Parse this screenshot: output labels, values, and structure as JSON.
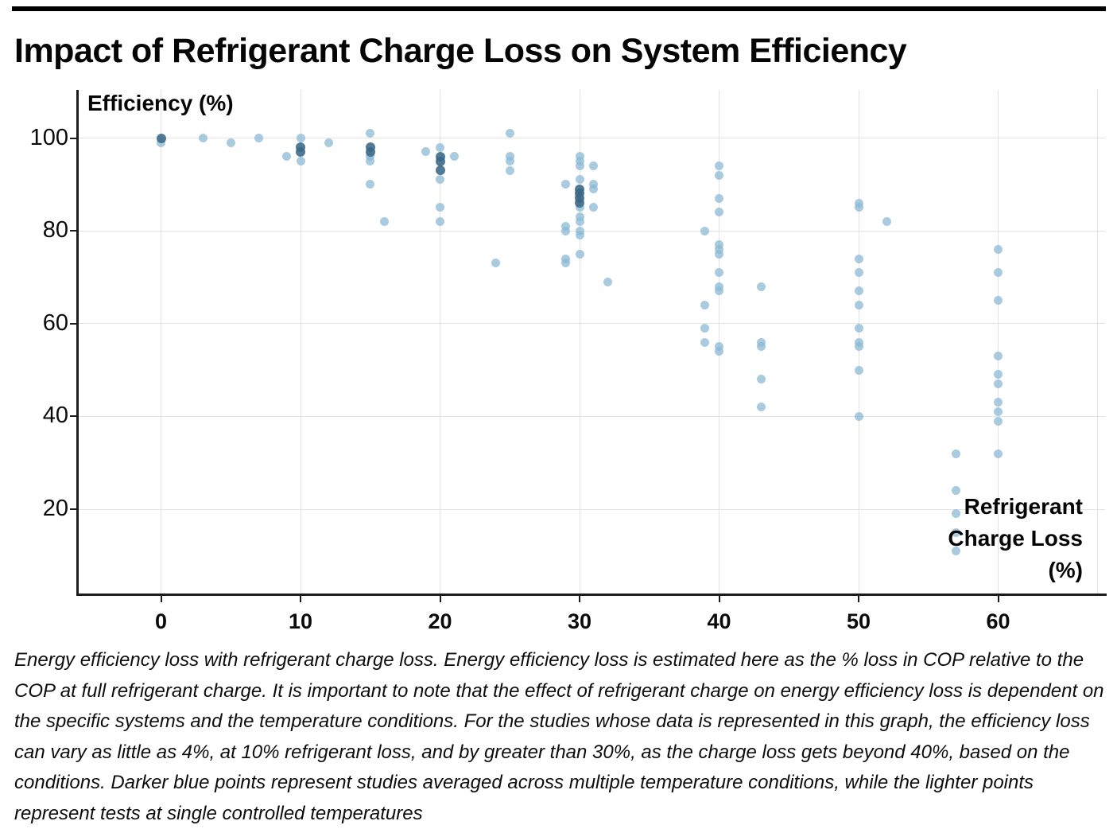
{
  "page": {
    "title": "Impact of Refrigerant Charge Loss on System Efficiency",
    "caption": "Energy efficiency loss with refrigerant charge loss. Energy efficiency loss is estimated here as the % loss in COP relative to the COP at full refrigerant charge. It is important to note that the effect of refrigerant charge on energy efficiency loss is dependent on the specific systems and the temperature conditions. For the studies whose data is represented in this graph, the efficiency loss can vary as little as 4%, at 10% refrigerant loss, and by greater than 30%, as the charge loss gets beyond 40%, based on the conditions. Darker blue points represent studies averaged across multiple temperature conditions, while the lighter points represent tests at single controlled temperatures"
  },
  "chart_data": {
    "type": "scatter",
    "title": "Impact of Refrigerant Charge Loss on System Efficiency",
    "xlabel": "Refrigerant Charge Loss (%)",
    "xlabel_display": "Refrigerant\nCharge Loss\n(%)",
    "ylabel": "Efficiency (%)",
    "xlim": [
      -6,
      67
    ],
    "ylim": [
      2,
      108
    ],
    "xticks": [
      0,
      10,
      20,
      30,
      40,
      50,
      60
    ],
    "yticks": [
      100,
      80,
      60,
      40,
      20
    ],
    "grid": true,
    "legend_position": "none",
    "colors": {
      "light_point": "#a8cbe0",
      "dark_point": "#4a7895",
      "gridline": "#e3e3e3",
      "axis": "#1c1c1c"
    },
    "series": [
      {
        "name": "Studies averaged across multiple temperature conditions",
        "style": "dark",
        "points": [
          [
            0,
            100
          ],
          [
            10,
            98
          ],
          [
            10,
            97
          ],
          [
            15,
            98
          ],
          [
            15,
            97
          ],
          [
            20,
            96
          ],
          [
            20,
            95
          ],
          [
            20,
            93
          ],
          [
            30,
            89
          ],
          [
            30,
            88
          ],
          [
            30,
            87
          ],
          [
            30,
            86
          ]
        ]
      },
      {
        "name": "Tests at single controlled temperatures",
        "style": "light",
        "points": [
          [
            0,
            99
          ],
          [
            3,
            100
          ],
          [
            5,
            99
          ],
          [
            7,
            100
          ],
          [
            9,
            96
          ],
          [
            10,
            100
          ],
          [
            10,
            95
          ],
          [
            12,
            99
          ],
          [
            15,
            101
          ],
          [
            15,
            96
          ],
          [
            15,
            95
          ],
          [
            15,
            90
          ],
          [
            16,
            82
          ],
          [
            19,
            97
          ],
          [
            20,
            98
          ],
          [
            20,
            91
          ],
          [
            20,
            85
          ],
          [
            20,
            82
          ],
          [
            21,
            96
          ],
          [
            24,
            73
          ],
          [
            25,
            101
          ],
          [
            25,
            96
          ],
          [
            25,
            95
          ],
          [
            25,
            93
          ],
          [
            29,
            90
          ],
          [
            29,
            81
          ],
          [
            29,
            80
          ],
          [
            29,
            74
          ],
          [
            29,
            73
          ],
          [
            30,
            96
          ],
          [
            30,
            95
          ],
          [
            30,
            94
          ],
          [
            30,
            91
          ],
          [
            30,
            85
          ],
          [
            30,
            83
          ],
          [
            30,
            82
          ],
          [
            30,
            80
          ],
          [
            30,
            79
          ],
          [
            30,
            75
          ],
          [
            31,
            94
          ],
          [
            31,
            90
          ],
          [
            31,
            89
          ],
          [
            31,
            85
          ],
          [
            32,
            69
          ],
          [
            39,
            80
          ],
          [
            39,
            64
          ],
          [
            39,
            59
          ],
          [
            39,
            56
          ],
          [
            40,
            94
          ],
          [
            40,
            92
          ],
          [
            40,
            87
          ],
          [
            40,
            84
          ],
          [
            40,
            77
          ],
          [
            40,
            76
          ],
          [
            40,
            75
          ],
          [
            40,
            71
          ],
          [
            40,
            68
          ],
          [
            40,
            67
          ],
          [
            40,
            55
          ],
          [
            40,
            54
          ],
          [
            43,
            68
          ],
          [
            43,
            56
          ],
          [
            43,
            55
          ],
          [
            43,
            48
          ],
          [
            43,
            42
          ],
          [
            50,
            86
          ],
          [
            50,
            85
          ],
          [
            50,
            74
          ],
          [
            50,
            71
          ],
          [
            50,
            67
          ],
          [
            50,
            64
          ],
          [
            50,
            59
          ],
          [
            50,
            56
          ],
          [
            50,
            55
          ],
          [
            50,
            50
          ],
          [
            50,
            40
          ],
          [
            52,
            82
          ],
          [
            57,
            32
          ],
          [
            57,
            24
          ],
          [
            57,
            19
          ],
          [
            57,
            15
          ],
          [
            57,
            11
          ],
          [
            60,
            76
          ],
          [
            60,
            71
          ],
          [
            60,
            65
          ],
          [
            60,
            53
          ],
          [
            60,
            49
          ],
          [
            60,
            47
          ],
          [
            60,
            43
          ],
          [
            60,
            41
          ],
          [
            60,
            39
          ],
          [
            60,
            32
          ]
        ]
      }
    ]
  }
}
